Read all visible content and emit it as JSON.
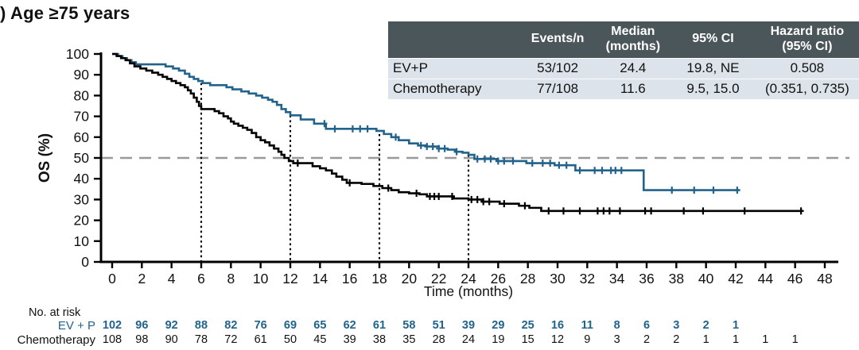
{
  "title": ") Age ≥75 years",
  "colors": {
    "evp": "#21638a",
    "chemo": "#000000",
    "median_ref_line": "#999999",
    "axis": "#000000",
    "table_header_bg": "#4b565b",
    "table_row_bg": "#dce3ea"
  },
  "inset_table": {
    "headers": [
      "",
      "Events/n",
      "Median\n(months)",
      "95% CI",
      "Hazard ratio\n(95% CI)"
    ],
    "rows": [
      {
        "label": "EV+P",
        "events_n": "53/102",
        "median": "24.4",
        "ci": "19.8, NE",
        "hr": "0.508"
      },
      {
        "label": "Chemotherapy",
        "events_n": "77/108",
        "median": "11.6",
        "ci": "9.5, 15.0",
        "hr": "(0.351, 0.735)"
      }
    ]
  },
  "risk_table": {
    "header": "No. at risk",
    "rows": [
      {
        "label": "EV + P",
        "color": "#21638a",
        "bold": true,
        "counts": [
          102,
          96,
          92,
          88,
          82,
          76,
          69,
          65,
          62,
          61,
          58,
          51,
          39,
          29,
          25,
          16,
          11,
          8,
          6,
          3,
          2,
          1
        ]
      },
      {
        "label": "Chemotherapy",
        "color": "#111111",
        "bold": false,
        "counts": [
          108,
          98,
          90,
          78,
          72,
          61,
          50,
          45,
          39,
          38,
          35,
          28,
          24,
          19,
          15,
          12,
          9,
          3,
          2,
          2,
          1,
          1,
          1,
          1
        ]
      }
    ]
  },
  "chart_data": {
    "type": "line",
    "subtype": "kaplan-meier-step",
    "title": ") Age ≥75 years",
    "xlabel": "Time (months)",
    "ylabel": "OS (%)",
    "xlim": [
      0,
      48
    ],
    "xtick_step": 2,
    "ylim": [
      0,
      100
    ],
    "ytick_step": 10,
    "grid": false,
    "legend_position": "none",
    "reference_lines": {
      "horizontal_dashed_y": 50,
      "vertical_dotted": [
        {
          "x": 6,
          "top": 86
        },
        {
          "x": 12,
          "top": 70.5
        },
        {
          "x": 18,
          "top": 61.5
        },
        {
          "x": 24,
          "top": 51.5
        }
      ]
    },
    "series": [
      {
        "name": "EV+P",
        "color": "#21638a",
        "end": 42.3,
        "steps": [
          [
            0,
            100
          ],
          [
            0.4,
            99
          ],
          [
            0.7,
            98
          ],
          [
            1.0,
            97
          ],
          [
            1.3,
            96
          ],
          [
            1.6,
            95
          ],
          [
            3.6,
            94
          ],
          [
            4.1,
            93
          ],
          [
            4.5,
            92
          ],
          [
            4.9,
            90.5
          ],
          [
            5.2,
            89
          ],
          [
            5.5,
            88
          ],
          [
            5.8,
            87
          ],
          [
            6.1,
            86
          ],
          [
            6.6,
            85
          ],
          [
            7.7,
            84
          ],
          [
            8.1,
            83
          ],
          [
            8.7,
            82
          ],
          [
            9.2,
            81
          ],
          [
            9.7,
            80
          ],
          [
            10.1,
            79
          ],
          [
            10.5,
            78
          ],
          [
            10.8,
            77
          ],
          [
            11.1,
            75.5
          ],
          [
            11.4,
            73.5
          ],
          [
            11.7,
            72
          ],
          [
            12.0,
            70.5
          ],
          [
            12.7,
            68.5
          ],
          [
            13.6,
            66.5
          ],
          [
            14.4,
            64
          ],
          [
            17.8,
            63
          ],
          [
            18.3,
            61.5
          ],
          [
            18.8,
            60
          ],
          [
            19.3,
            58.5
          ],
          [
            20.0,
            57
          ],
          [
            20.6,
            56
          ],
          [
            21.2,
            55.5
          ],
          [
            22.0,
            54.5
          ],
          [
            22.6,
            54
          ],
          [
            23.1,
            53
          ],
          [
            23.6,
            52.5
          ],
          [
            24.0,
            51.5
          ],
          [
            24.4,
            49.5
          ],
          [
            25.9,
            48.5
          ],
          [
            27.9,
            47.5
          ],
          [
            29.8,
            46.5
          ],
          [
            31.2,
            44
          ],
          [
            35.8,
            34.5
          ]
        ],
        "censor_times": [
          14.3,
          15.0,
          16.2,
          16.7,
          17.2,
          19.1,
          20.8,
          21.2,
          21.6,
          22.0,
          22.4,
          23.2,
          24.6,
          25.1,
          25.5,
          26.0,
          26.4,
          27.0,
          28.3,
          29.0,
          29.5,
          30.1,
          30.6,
          31.5,
          32.5,
          33.0,
          33.6,
          33.9,
          34.3,
          37.7,
          39.2,
          40.5,
          42.1
        ]
      },
      {
        "name": "Chemotherapy",
        "color": "#000000",
        "end": 46.5,
        "steps": [
          [
            0,
            100
          ],
          [
            0.3,
            99
          ],
          [
            0.6,
            98
          ],
          [
            0.9,
            97
          ],
          [
            1.2,
            95.5
          ],
          [
            1.5,
            94
          ],
          [
            1.9,
            93
          ],
          [
            2.3,
            92
          ],
          [
            2.7,
            91
          ],
          [
            3.1,
            90
          ],
          [
            3.4,
            89
          ],
          [
            3.7,
            88
          ],
          [
            4.0,
            87
          ],
          [
            4.3,
            86
          ],
          [
            4.6,
            85
          ],
          [
            4.9,
            84
          ],
          [
            5.1,
            82.5
          ],
          [
            5.3,
            81
          ],
          [
            5.5,
            79
          ],
          [
            5.7,
            77
          ],
          [
            5.85,
            75
          ],
          [
            6.0,
            73.5
          ],
          [
            6.9,
            72.5
          ],
          [
            7.2,
            71.5
          ],
          [
            7.5,
            70
          ],
          [
            7.8,
            69
          ],
          [
            8.0,
            67.5
          ],
          [
            8.2,
            66.5
          ],
          [
            8.5,
            65.5
          ],
          [
            8.8,
            64.5
          ],
          [
            9.1,
            63.5
          ],
          [
            9.4,
            62
          ],
          [
            9.7,
            60
          ],
          [
            10.0,
            58.5
          ],
          [
            10.3,
            57.5
          ],
          [
            10.6,
            56
          ],
          [
            10.9,
            54.5
          ],
          [
            11.2,
            53
          ],
          [
            11.4,
            51.5
          ],
          [
            11.6,
            50
          ],
          [
            11.9,
            48.5
          ],
          [
            12.2,
            47.5
          ],
          [
            13.5,
            46
          ],
          [
            14.0,
            45
          ],
          [
            14.4,
            44
          ],
          [
            14.8,
            42.5
          ],
          [
            15.1,
            41
          ],
          [
            15.5,
            39.5
          ],
          [
            15.8,
            38
          ],
          [
            16.8,
            37.5
          ],
          [
            17.6,
            36.5
          ],
          [
            18.2,
            35.5
          ],
          [
            18.8,
            34.5
          ],
          [
            19.3,
            33.5
          ],
          [
            20.0,
            33
          ],
          [
            20.7,
            32.5
          ],
          [
            21.2,
            31.5
          ],
          [
            23.0,
            30.5
          ],
          [
            24.0,
            30
          ],
          [
            24.9,
            29
          ],
          [
            26.1,
            28
          ],
          [
            27.4,
            27
          ],
          [
            28.1,
            26
          ],
          [
            28.9,
            24.5
          ]
        ],
        "censor_times": [
          12.5,
          16.0,
          18.6,
          20.5,
          21.4,
          21.7,
          22.0,
          22.9,
          24.2,
          24.6,
          25.0,
          25.4,
          26.4,
          27.8,
          29.4,
          30.4,
          31.5,
          32.7,
          33.1,
          33.5,
          34.2,
          35.9,
          36.3,
          38.5,
          39.8,
          42.6,
          46.4
        ]
      }
    ]
  }
}
